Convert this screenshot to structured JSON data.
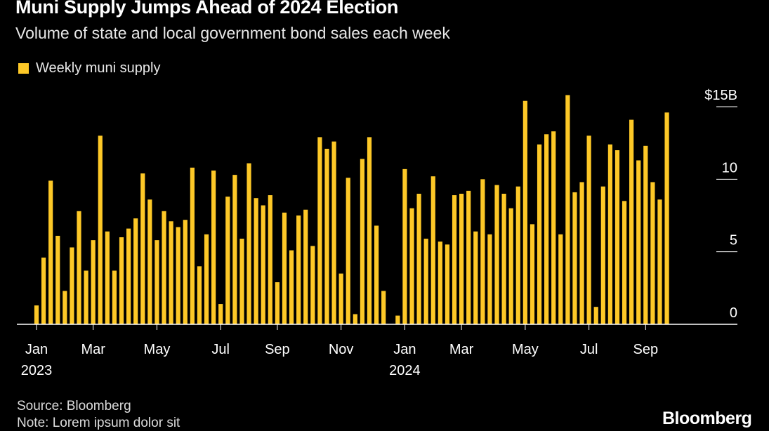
{
  "header": {
    "title": "Muni Supply Jumps Ahead of 2024 Election",
    "subtitle": "Volume of state and local government bond sales each week"
  },
  "legend": {
    "label": "Weekly muni supply"
  },
  "footer": {
    "source": "Source: Bloomberg",
    "note": "Note: Lorem ipsum dolor sit",
    "logo": "Bloomberg"
  },
  "colors": {
    "bar": "#fdc827",
    "background": "#000000",
    "axis": "#ffffff",
    "text": "#e8e8e8"
  },
  "chart_data": {
    "type": "bar",
    "title": "Muni Supply Jumps Ahead of 2024 Election",
    "subtitle": "Volume of state and local government bond sales each week",
    "ylabel": "",
    "xlabel": "",
    "ylim": [
      0,
      15
    ],
    "yticks": [
      {
        "value": 0,
        "label": "0"
      },
      {
        "value": 5,
        "label": "5"
      },
      {
        "value": 10,
        "label": "10"
      },
      {
        "value": 15,
        "label": "$15B"
      }
    ],
    "xticks": [
      {
        "index": 0,
        "label": "Jan",
        "sublabel": "2023"
      },
      {
        "index": 8,
        "label": "Mar",
        "sublabel": ""
      },
      {
        "index": 17,
        "label": "May",
        "sublabel": ""
      },
      {
        "index": 26,
        "label": "Jul",
        "sublabel": ""
      },
      {
        "index": 34,
        "label": "Sep",
        "sublabel": ""
      },
      {
        "index": 43,
        "label": "Nov",
        "sublabel": ""
      },
      {
        "index": 52,
        "label": "Jan",
        "sublabel": "2024"
      },
      {
        "index": 60,
        "label": "Mar",
        "sublabel": ""
      },
      {
        "index": 69,
        "label": "May",
        "sublabel": ""
      },
      {
        "index": 78,
        "label": "Jul",
        "sublabel": ""
      },
      {
        "index": 86,
        "label": "Sep",
        "sublabel": ""
      }
    ],
    "series": [
      {
        "name": "Weekly muni supply",
        "values": [
          1.3,
          4.6,
          9.9,
          6.1,
          2.3,
          5.3,
          7.8,
          3.7,
          5.8,
          13.0,
          6.4,
          3.7,
          6.0,
          6.6,
          7.3,
          10.4,
          8.6,
          5.8,
          7.8,
          7.1,
          6.7,
          7.2,
          10.8,
          4.0,
          6.2,
          10.6,
          1.4,
          8.8,
          10.3,
          5.9,
          11.1,
          8.7,
          8.2,
          8.9,
          2.9,
          7.7,
          5.1,
          7.5,
          7.9,
          5.4,
          12.9,
          12.1,
          12.6,
          3.5,
          10.1,
          0.7,
          11.4,
          12.9,
          6.8,
          2.3,
          0,
          0.6,
          10.7,
          8.0,
          9.0,
          5.9,
          10.2,
          5.7,
          5.5,
          8.9,
          9.0,
          9.2,
          6.4,
          10.0,
          6.2,
          9.6,
          9.0,
          8.0,
          9.5,
          15.4,
          6.9,
          12.4,
          13.1,
          13.3,
          6.2,
          15.8,
          9.1,
          9.8,
          13.0,
          1.2,
          9.5,
          12.4,
          12.0,
          8.5,
          14.1,
          11.3,
          12.3,
          9.8,
          8.6,
          14.6
        ]
      }
    ]
  }
}
